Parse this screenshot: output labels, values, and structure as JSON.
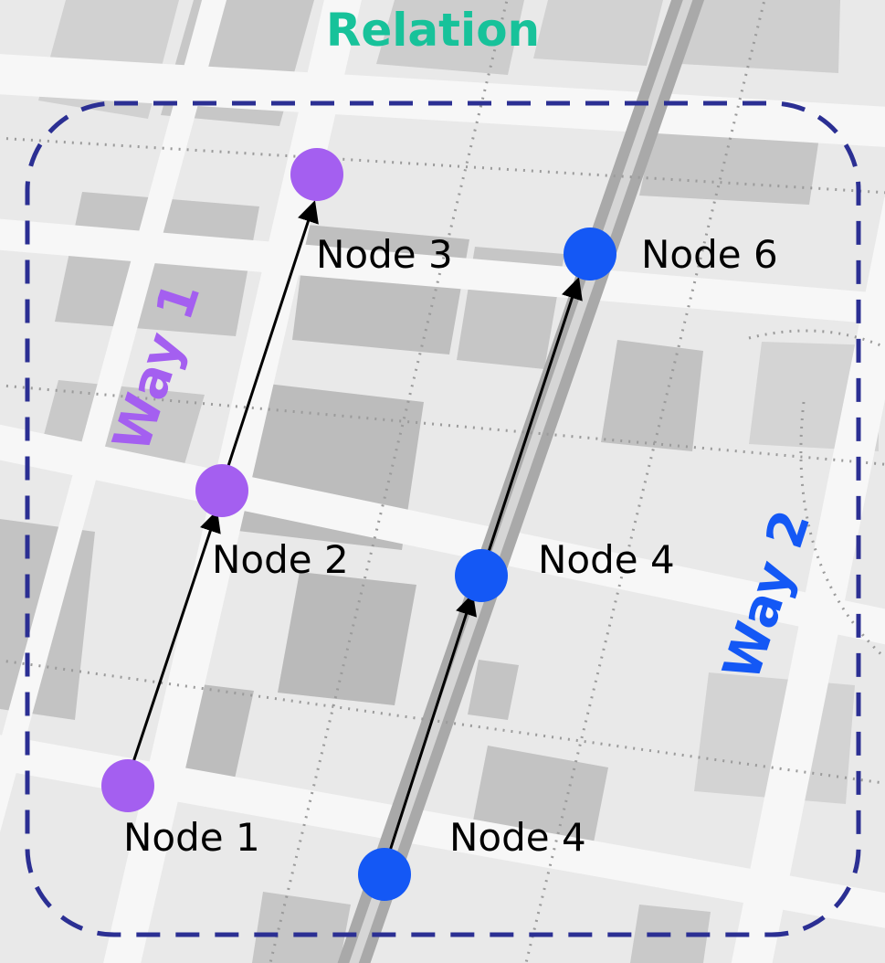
{
  "title": "Relation",
  "colors": {
    "relation_title": "#17c29a",
    "relation_border": "#2b2f93",
    "way1": "#a45ff0",
    "way2": "#1458f5",
    "edge": "#000000",
    "map_background": "#e9e9e9",
    "block": "#c8c8c8",
    "road": "#f7f7f7",
    "main_road": "#a9a9a9"
  },
  "ways": [
    {
      "label": "Way 1",
      "color_key": "way1"
    },
    {
      "label": "Way 2",
      "color_key": "way2"
    }
  ],
  "nodes": [
    {
      "label": "Node 3",
      "way": "Way 1"
    },
    {
      "label": "Node 2",
      "way": "Way 1"
    },
    {
      "label": "Node 1",
      "way": "Way 1"
    },
    {
      "label": "Node 6",
      "way": "Way 2"
    },
    {
      "label": "Node 4",
      "way": "Way 2"
    },
    {
      "label": "Node 4",
      "way": "Way 2"
    }
  ],
  "edges": [
    {
      "from": "Node 1",
      "to": "Node 2",
      "way": "Way 1"
    },
    {
      "from": "Node 2",
      "to": "Node 3",
      "way": "Way 1"
    },
    {
      "from": "Node 4",
      "to": "Node 4",
      "way": "Way 2"
    },
    {
      "from": "Node 4",
      "to": "Node 6",
      "way": "Way 2"
    }
  ]
}
